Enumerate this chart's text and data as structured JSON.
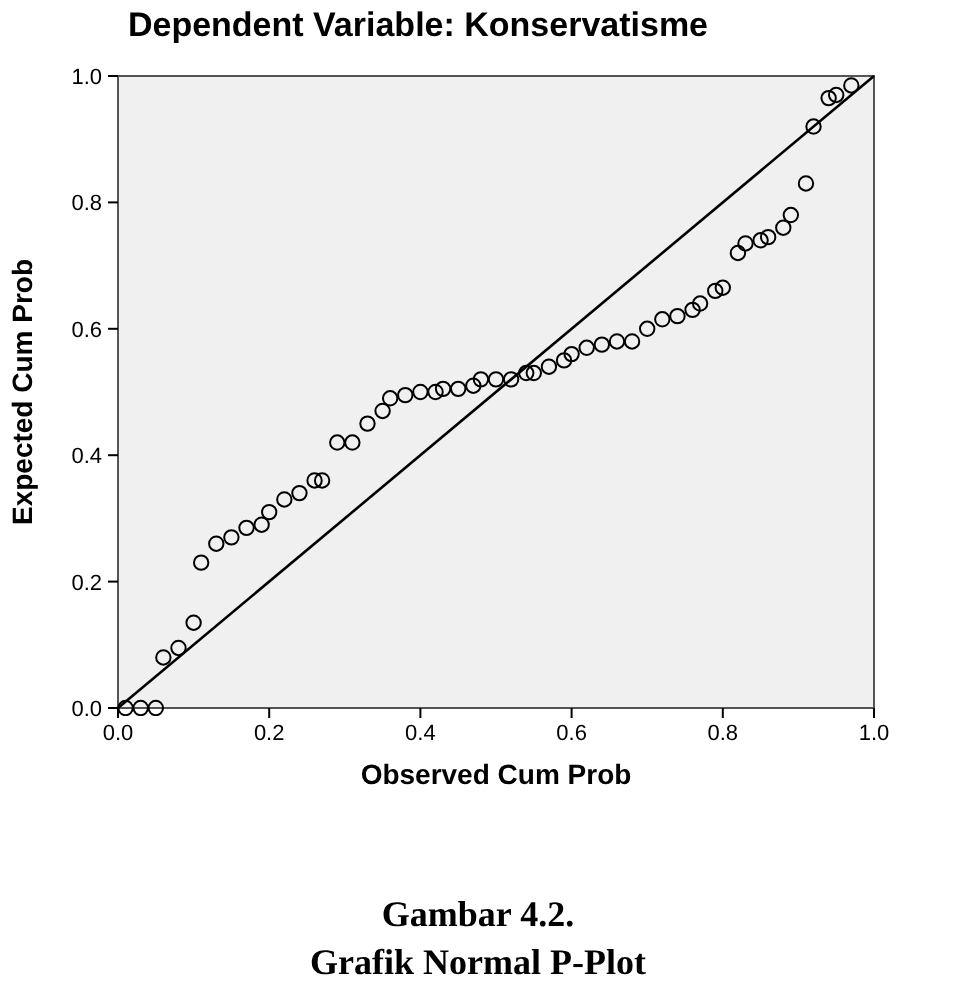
{
  "chart_data": {
    "type": "scatter",
    "title": "Dependent Variable: Konservatisme",
    "xlabel": "Observed Cum Prob",
    "ylabel": "Expected Cum Prob",
    "xlim": [
      0,
      1
    ],
    "ylim": [
      0,
      1
    ],
    "xticks": [
      {
        "value": 0,
        "label": "0.0"
      },
      {
        "value": 0.2,
        "label": "0.2"
      },
      {
        "value": 0.4,
        "label": "0.4"
      },
      {
        "value": 0.6,
        "label": "0.6"
      },
      {
        "value": 0.8,
        "label": "0.8"
      },
      {
        "value": 1,
        "label": "1.0"
      }
    ],
    "yticks": [
      {
        "value": 0,
        "label": "0.0"
      },
      {
        "value": 0.2,
        "label": "0.2"
      },
      {
        "value": 0.4,
        "label": "0.4"
      },
      {
        "value": 0.6,
        "label": "0.6"
      },
      {
        "value": 0.8,
        "label": "0.8"
      },
      {
        "value": 1,
        "label": "1.0"
      }
    ],
    "grid": false,
    "annotations": [
      "Gambar 4.2.",
      "Grafik Normal P-Plot"
    ],
    "series": [
      {
        "marker": "circle",
        "color": "#000000",
        "x": [
          0.01,
          0.03,
          0.05,
          0.06,
          0.08,
          0.1,
          0.11,
          0.13,
          0.15,
          0.17,
          0.19,
          0.2,
          0.22,
          0.24,
          0.26,
          0.27,
          0.29,
          0.31,
          0.33,
          0.35,
          0.36,
          0.38,
          0.4,
          0.42,
          0.43,
          0.45,
          0.47,
          0.48,
          0.5,
          0.52,
          0.54,
          0.55,
          0.57,
          0.59,
          0.6,
          0.62,
          0.64,
          0.66,
          0.68,
          0.7,
          0.72,
          0.74,
          0.76,
          0.77,
          0.79,
          0.8,
          0.82,
          0.83,
          0.85,
          0.86,
          0.88,
          0.89,
          0.91,
          0.92,
          0.94,
          0.95,
          0.97
        ],
        "values": [
          0,
          0,
          0,
          0.08,
          0.095,
          0.135,
          0.23,
          0.26,
          0.27,
          0.285,
          0.29,
          0.31,
          0.33,
          0.34,
          0.36,
          0.36,
          0.42,
          0.42,
          0.45,
          0.47,
          0.49,
          0.495,
          0.5,
          0.5,
          0.505,
          0.505,
          0.51,
          0.52,
          0.52,
          0.52,
          0.53,
          0.53,
          0.54,
          0.55,
          0.56,
          0.57,
          0.575,
          0.58,
          0.58,
          0.6,
          0.615,
          0.62,
          0.63,
          0.64,
          0.66,
          0.665,
          0.72,
          0.735,
          0.74,
          0.745,
          0.76,
          0.78,
          0.83,
          0.92,
          0.965,
          0.97,
          0.985
        ]
      },
      {
        "type": "line",
        "marker": "none",
        "color": "#000000",
        "x": [
          0,
          1
        ],
        "values": [
          0,
          1
        ]
      }
    ]
  }
}
